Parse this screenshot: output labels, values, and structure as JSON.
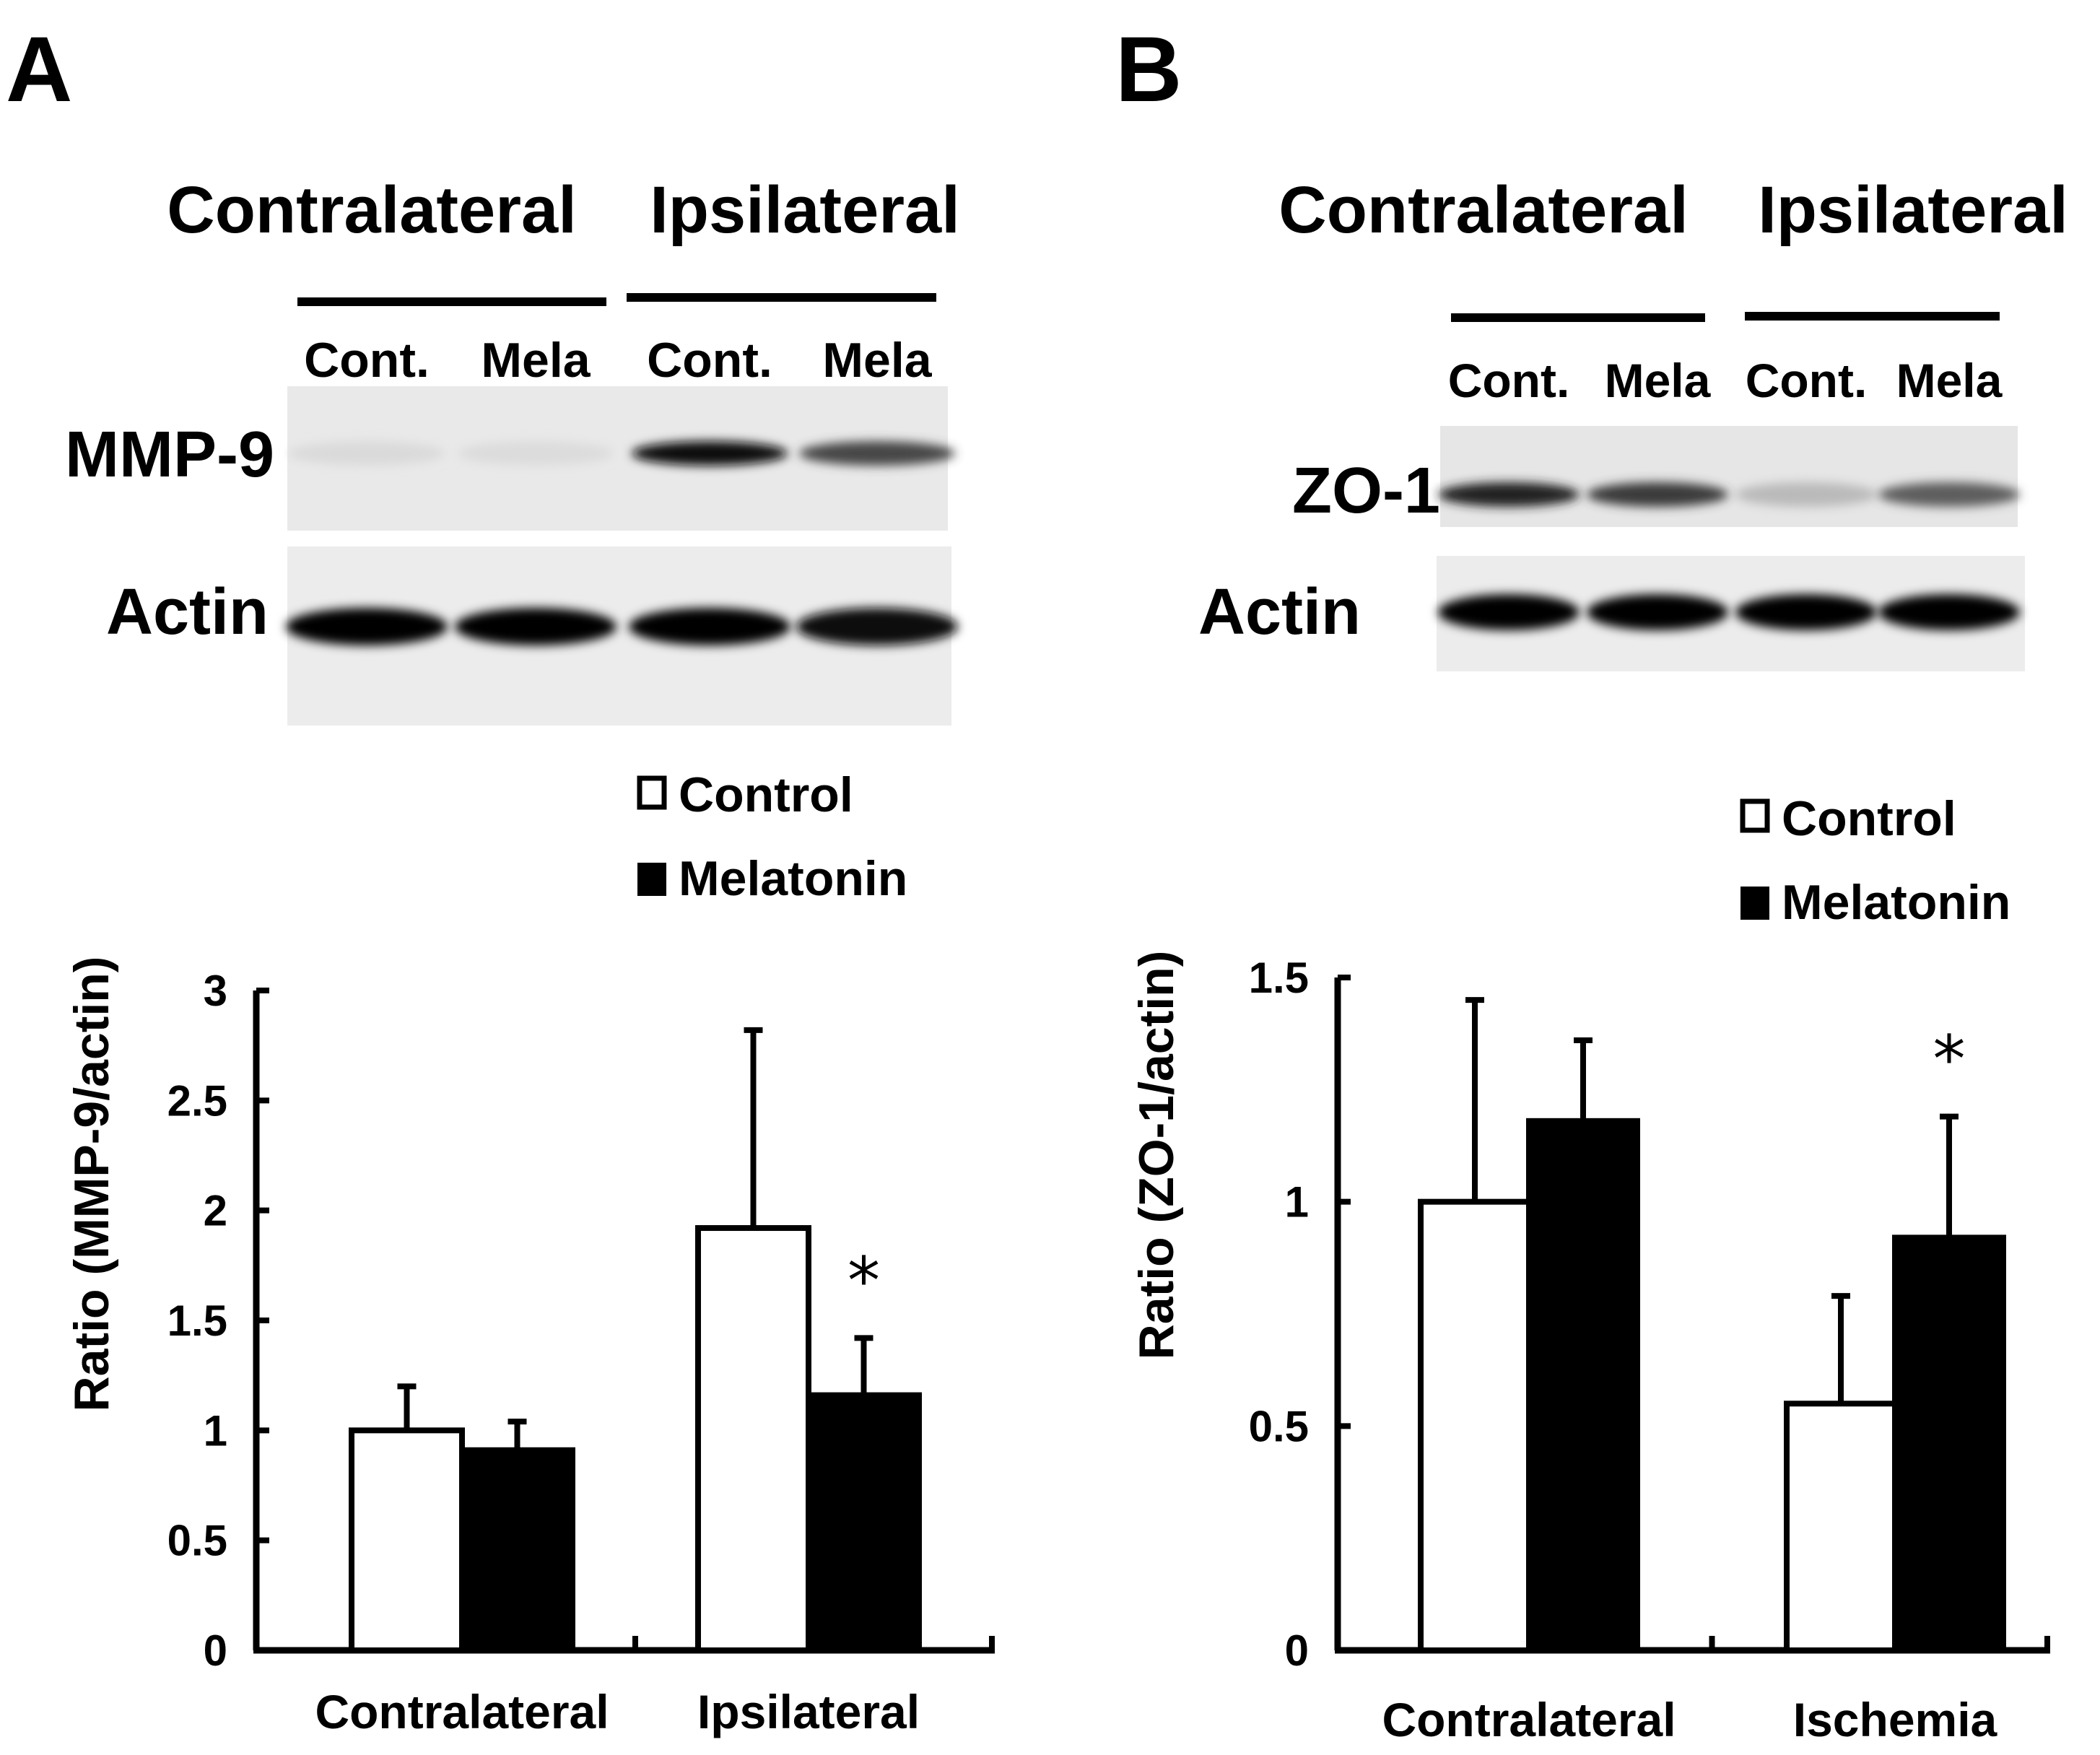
{
  "chart_data": [
    {
      "panel": "A",
      "type": "bar",
      "blot": {
        "group_labels": [
          "Contralateral",
          "Ipsilateral"
        ],
        "lane_labels": [
          "Cont.",
          "Mela",
          "Cont.",
          "Mela"
        ],
        "rows": [
          {
            "label": "MMP-9",
            "intensity": [
              0.06,
              0.05,
              0.95,
              0.7
            ]
          },
          {
            "label": "Actin",
            "intensity": [
              1.0,
              1.0,
              1.0,
              0.95
            ]
          }
        ]
      },
      "legend": [
        "Control",
        "Melatonin"
      ],
      "categories": [
        "Contralateral",
        "Ipsilateral"
      ],
      "series": [
        {
          "name": "Control",
          "color": "#ffffff",
          "values": [
            1.0,
            1.92
          ],
          "errors": [
            0.2,
            0.9
          ]
        },
        {
          "name": "Melatonin",
          "color": "#000000",
          "values": [
            0.91,
            1.16
          ],
          "errors": [
            0.13,
            0.26
          ]
        }
      ],
      "significance": [
        {
          "series": 1,
          "category": 1,
          "mark": "*"
        }
      ],
      "ylabel": "Ratio (MMP-9/actin)",
      "xlabel": "",
      "ylim": [
        0,
        3
      ],
      "yticks": [
        0,
        0.5,
        1,
        1.5,
        2,
        2.5,
        3
      ],
      "ytick_labels": [
        "0",
        "0.5",
        "1",
        "1.5",
        "2",
        "2.5",
        "3"
      ]
    },
    {
      "panel": "B",
      "type": "bar",
      "blot": {
        "group_labels": [
          "Contralateral",
          "Ipsilateral"
        ],
        "lane_labels": [
          "Cont.",
          "Mela",
          "Cont.",
          "Mela"
        ],
        "rows": [
          {
            "label": "ZO-1",
            "intensity": [
              0.85,
              0.75,
              0.2,
              0.6
            ]
          },
          {
            "label": "Actin",
            "intensity": [
              1.0,
              1.0,
              1.0,
              1.0
            ]
          }
        ]
      },
      "legend": [
        "Control",
        "Melatonin"
      ],
      "categories": [
        "Contralateral",
        "Ischemia"
      ],
      "series": [
        {
          "name": "Control",
          "color": "#ffffff",
          "values": [
            1.0,
            0.55
          ],
          "errors": [
            0.45,
            0.24
          ]
        },
        {
          "name": "Melatonin",
          "color": "#000000",
          "values": [
            1.18,
            0.92
          ],
          "errors": [
            0.18,
            0.27
          ]
        }
      ],
      "significance": [
        {
          "series": 1,
          "category": 1,
          "mark": "*"
        }
      ],
      "ylabel": "Ratio (ZO-1/actin)",
      "xlabel": "",
      "ylim": [
        0,
        1.5
      ],
      "yticks": [
        0,
        0.5,
        1,
        1.5
      ],
      "ytick_labels": [
        "0",
        "0.5",
        "1",
        "1.5"
      ]
    }
  ]
}
